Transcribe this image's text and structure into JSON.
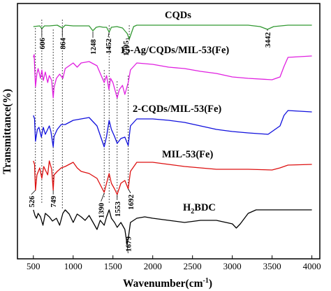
{
  "chart_data": {
    "type": "line",
    "title": "",
    "xlabel": "Wavenumber(cm",
    "xlabel_sup": "-1",
    "xlabel_close": ")",
    "ylabel": "Transmittance(%)",
    "xlim": [
      300,
      4100
    ],
    "xticks": [
      500,
      1000,
      1500,
      2000,
      2500,
      3000,
      3500,
      4000
    ],
    "series": [
      {
        "name": "CQDs",
        "color": "#339933",
        "points": [
          [
            500,
            38
          ],
          [
            580,
            37
          ],
          [
            606,
            41
          ],
          [
            640,
            37
          ],
          [
            700,
            37
          ],
          [
            800,
            36
          ],
          [
            864,
            40
          ],
          [
            900,
            36
          ],
          [
            1000,
            37
          ],
          [
            1100,
            37
          ],
          [
            1200,
            37
          ],
          [
            1248,
            44
          ],
          [
            1290,
            39
          ],
          [
            1330,
            38
          ],
          [
            1380,
            39
          ],
          [
            1420,
            39
          ],
          [
            1452,
            46
          ],
          [
            1480,
            39
          ],
          [
            1550,
            38
          ],
          [
            1620,
            40
          ],
          [
            1680,
            48
          ],
          [
            1705,
            56
          ],
          [
            1730,
            48
          ],
          [
            1760,
            38
          ],
          [
            1800,
            36
          ],
          [
            2000,
            36
          ],
          [
            2500,
            36
          ],
          [
            3000,
            36
          ],
          [
            3200,
            36
          ],
          [
            3350,
            38
          ],
          [
            3442,
            42
          ],
          [
            3520,
            38
          ],
          [
            3700,
            36
          ],
          [
            4000,
            36
          ]
        ]
      },
      {
        "name": "15-Ag/CQDs/MIL-53(Fe)",
        "color": "#e020e0",
        "points": [
          [
            500,
            82
          ],
          [
            510,
            78
          ],
          [
            526,
            124
          ],
          [
            545,
            105
          ],
          [
            560,
            98
          ],
          [
            590,
            112
          ],
          [
            606,
            100
          ],
          [
            625,
            115
          ],
          [
            650,
            103
          ],
          [
            680,
            118
          ],
          [
            700,
            108
          ],
          [
            730,
            115
          ],
          [
            749,
            140
          ],
          [
            760,
            125
          ],
          [
            790,
            112
          ],
          [
            830,
            106
          ],
          [
            870,
            112
          ],
          [
            900,
            98
          ],
          [
            1000,
            90
          ],
          [
            1050,
            96
          ],
          [
            1100,
            90
          ],
          [
            1200,
            88
          ],
          [
            1300,
            94
          ],
          [
            1390,
            118
          ],
          [
            1420,
            108
          ],
          [
            1450,
            128
          ],
          [
            1470,
            112
          ],
          [
            1500,
            118
          ],
          [
            1553,
            140
          ],
          [
            1580,
            128
          ],
          [
            1620,
            122
          ],
          [
            1650,
            135
          ],
          [
            1692,
            118
          ],
          [
            1720,
            100
          ],
          [
            1800,
            90
          ],
          [
            2000,
            92
          ],
          [
            2200,
            96
          ],
          [
            2400,
            98
          ],
          [
            2600,
            102
          ],
          [
            2800,
            105
          ],
          [
            3000,
            110
          ],
          [
            3200,
            112
          ],
          [
            3500,
            114
          ],
          [
            3600,
            110
          ],
          [
            3650,
            95
          ],
          [
            3700,
            82
          ],
          [
            4000,
            80
          ]
        ]
      },
      {
        "name": "2-CQDs/MIL-53(Fe)",
        "color": "#1010dd",
        "points": [
          [
            500,
            165
          ],
          [
            515,
            170
          ],
          [
            526,
            202
          ],
          [
            550,
            185
          ],
          [
            570,
            182
          ],
          [
            600,
            196
          ],
          [
            625,
            182
          ],
          [
            650,
            192
          ],
          [
            700,
            180
          ],
          [
            720,
            188
          ],
          [
            749,
            210
          ],
          [
            760,
            195
          ],
          [
            800,
            185
          ],
          [
            850,
            178
          ],
          [
            900,
            178
          ],
          [
            1000,
            172
          ],
          [
            1100,
            170
          ],
          [
            1200,
            168
          ],
          [
            1300,
            180
          ],
          [
            1390,
            210
          ],
          [
            1420,
            195
          ],
          [
            1452,
            172
          ],
          [
            1480,
            185
          ],
          [
            1520,
            195
          ],
          [
            1553,
            205
          ],
          [
            1600,
            198
          ],
          [
            1650,
            196
          ],
          [
            1692,
            208
          ],
          [
            1720,
            180
          ],
          [
            1800,
            170
          ],
          [
            2000,
            170
          ],
          [
            2200,
            172
          ],
          [
            2400,
            175
          ],
          [
            2600,
            180
          ],
          [
            2800,
            185
          ],
          [
            3000,
            188
          ],
          [
            3200,
            190
          ],
          [
            3450,
            192
          ],
          [
            3600,
            180
          ],
          [
            3650,
            165
          ],
          [
            3700,
            158
          ],
          [
            4000,
            160
          ]
        ]
      },
      {
        "name": "MIL-53(Fe)",
        "color": "#dd1111",
        "points": [
          [
            500,
            230
          ],
          [
            515,
            235
          ],
          [
            526,
            272
          ],
          [
            545,
            250
          ],
          [
            580,
            240
          ],
          [
            606,
            255
          ],
          [
            630,
            238
          ],
          [
            680,
            250
          ],
          [
            700,
            230
          ],
          [
            730,
            242
          ],
          [
            749,
            272
          ],
          [
            760,
            250
          ],
          [
            800,
            245
          ],
          [
            850,
            240
          ],
          [
            900,
            238
          ],
          [
            1000,
            232
          ],
          [
            1050,
            240
          ],
          [
            1100,
            245
          ],
          [
            1200,
            248
          ],
          [
            1300,
            255
          ],
          [
            1390,
            275
          ],
          [
            1420,
            262
          ],
          [
            1452,
            248
          ],
          [
            1480,
            262
          ],
          [
            1520,
            270
          ],
          [
            1553,
            278
          ],
          [
            1600,
            262
          ],
          [
            1650,
            258
          ],
          [
            1692,
            270
          ],
          [
            1720,
            245
          ],
          [
            1800,
            232
          ],
          [
            2000,
            232
          ],
          [
            2200,
            235
          ],
          [
            2400,
            238
          ],
          [
            2600,
            240
          ],
          [
            2800,
            242
          ],
          [
            3000,
            242
          ],
          [
            3200,
            242
          ],
          [
            3500,
            243
          ],
          [
            3600,
            240
          ],
          [
            3700,
            236
          ],
          [
            4000,
            235
          ]
        ]
      },
      {
        "name": "H2BDC",
        "color": "#000000",
        "points": [
          [
            500,
            300
          ],
          [
            520,
            308
          ],
          [
            540,
            312
          ],
          [
            560,
            305
          ],
          [
            590,
            310
          ],
          [
            620,
            322
          ],
          [
            650,
            305
          ],
          [
            700,
            310
          ],
          [
            740,
            316
          ],
          [
            790,
            312
          ],
          [
            830,
            322
          ],
          [
            870,
            305
          ],
          [
            900,
            300
          ],
          [
            950,
            306
          ],
          [
            1000,
            318
          ],
          [
            1050,
            306
          ],
          [
            1100,
            310
          ],
          [
            1150,
            315
          ],
          [
            1200,
            308
          ],
          [
            1250,
            318
          ],
          [
            1300,
            328
          ],
          [
            1340,
            315
          ],
          [
            1390,
            322
          ],
          [
            1420,
            310
          ],
          [
            1452,
            300
          ],
          [
            1480,
            312
          ],
          [
            1520,
            318
          ],
          [
            1553,
            325
          ],
          [
            1600,
            318
          ],
          [
            1650,
            328
          ],
          [
            1679,
            350
          ],
          [
            1700,
            335
          ],
          [
            1720,
            318
          ],
          [
            1800,
            312
          ],
          [
            1900,
            310
          ],
          [
            2000,
            312
          ],
          [
            2200,
            315
          ],
          [
            2400,
            318
          ],
          [
            2600,
            315
          ],
          [
            2800,
            315
          ],
          [
            3000,
            320
          ],
          [
            3050,
            326
          ],
          [
            3100,
            320
          ],
          [
            3200,
            305
          ],
          [
            3300,
            300
          ],
          [
            3500,
            300
          ],
          [
            4000,
            300
          ]
        ]
      }
    ],
    "labels": {
      "cqds": "CQDs",
      "ag": "15-Ag/CQDs/MIL-53(Fe)",
      "cqdsmil": "2-CQDs/MIL-53(Fe)",
      "mil": "MIL-53(Fe)",
      "h2bdc_h": "H",
      "h2bdc_sub": "2",
      "h2bdc_rest": "BDC"
    },
    "peak_labels": [
      "606",
      "864",
      "1248",
      "1452",
      "1705",
      "3442",
      "526",
      "749",
      "1390",
      "1553",
      "1692",
      "1679"
    ],
    "grid": false,
    "legend": "none"
  }
}
